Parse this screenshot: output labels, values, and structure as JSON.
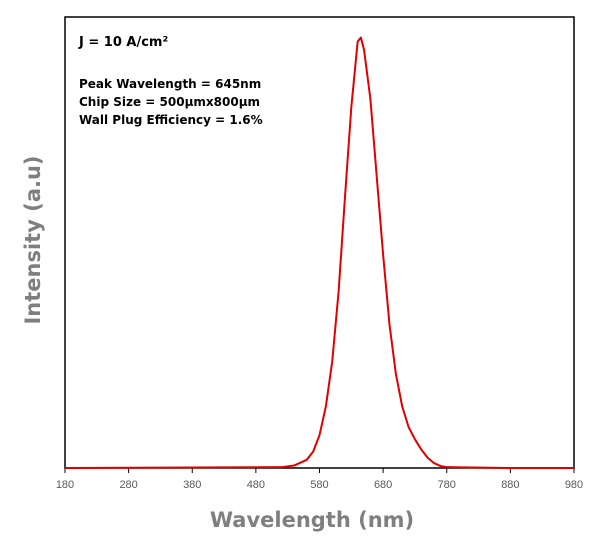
{
  "chart_data": {
    "type": "line",
    "title": "",
    "xlabel": "Wavelength (nm)",
    "ylabel": "Intensity (a.u)",
    "xlim": [
      180,
      980
    ],
    "ylim": [
      0,
      1.1
    ],
    "xticks": [
      180,
      280,
      380,
      480,
      580,
      680,
      780,
      880,
      980
    ],
    "xtick_labels": [
      "180",
      "280",
      "380",
      "480",
      "580",
      "680",
      "780",
      "880",
      "980"
    ],
    "yticks_visible": false,
    "grid": false,
    "legend": "none",
    "annotations": {
      "current_density": "J = 10 A/cm²",
      "peak_wavelength": "Peak Wavelength = 645nm",
      "chip_size": "Chip Size = 500µmx800µm",
      "wall_plug_efficiency": "Wall Plug Efficiency = 1.6%"
    },
    "series": [
      {
        "color": "#e00000",
        "x": [
          180,
          520,
          540,
          560,
          570,
          580,
          590,
          600,
          610,
          620,
          630,
          640,
          645,
          650,
          660,
          670,
          680,
          690,
          700,
          710,
          720,
          730,
          740,
          750,
          760,
          770,
          780,
          880,
          980
        ],
        "y": [
          0,
          0.002,
          0.006,
          0.02,
          0.04,
          0.08,
          0.15,
          0.26,
          0.43,
          0.66,
          0.88,
          1.04,
          1.05,
          1.02,
          0.9,
          0.71,
          0.52,
          0.35,
          0.23,
          0.15,
          0.1,
          0.07,
          0.045,
          0.025,
          0.012,
          0.005,
          0.002,
          0,
          0
        ]
      }
    ]
  }
}
